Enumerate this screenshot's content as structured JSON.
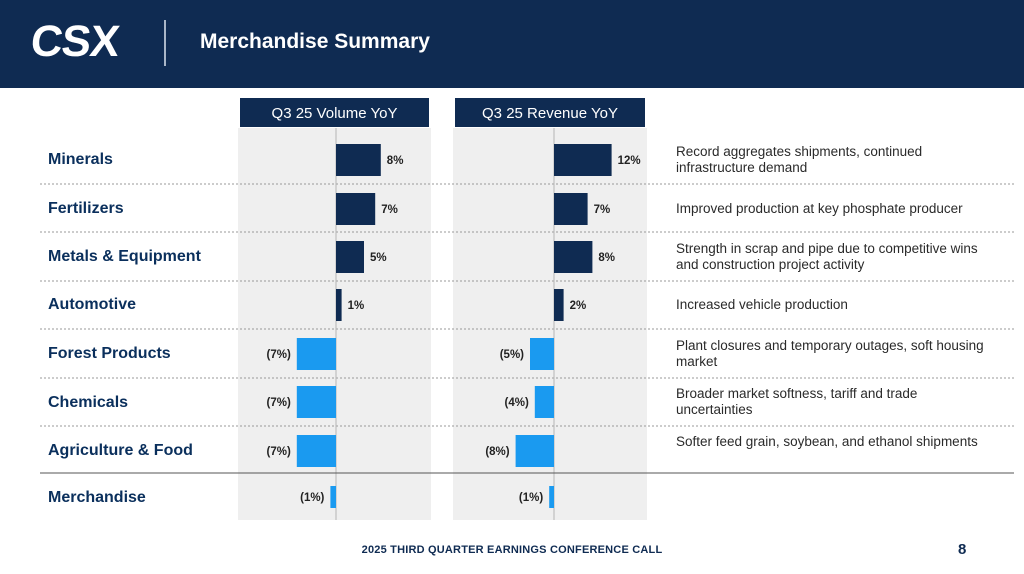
{
  "header": {
    "logo_text": "CSX",
    "title": "Merchandise Summary"
  },
  "chart_data": [
    {
      "type": "bar",
      "orientation": "horizontal",
      "title": "Q3 25 Volume YoY",
      "categories": [
        "Minerals",
        "Fertilizers",
        "Metals & Equipment",
        "Automotive",
        "Forest Products",
        "Chemicals",
        "Agriculture & Food",
        "Merchandise"
      ],
      "values": [
        8,
        7,
        5,
        1,
        -7,
        -7,
        -7,
        -1
      ],
      "value_labels": [
        "8%",
        "7%",
        "5%",
        "1%",
        "(7%)",
        "(7%)",
        "(7%)",
        "(1%)"
      ],
      "unit": "%",
      "colors": {
        "positive": "#0f2b52",
        "negative": "#1a9af0"
      }
    },
    {
      "type": "bar",
      "orientation": "horizontal",
      "title": "Q3 25 Revenue YoY",
      "categories": [
        "Minerals",
        "Fertilizers",
        "Metals & Equipment",
        "Automotive",
        "Forest Products",
        "Chemicals",
        "Agriculture & Food",
        "Merchandise"
      ],
      "values": [
        12,
        7,
        8,
        2,
        -5,
        -4,
        -8,
        -1
      ],
      "value_labels": [
        "12%",
        "7%",
        "8%",
        "2%",
        "(5%)",
        "(4%)",
        "(8%)",
        "(1%)"
      ],
      "unit": "%",
      "colors": {
        "positive": "#0f2b52",
        "negative": "#1a9af0"
      }
    }
  ],
  "rows": [
    {
      "label": "Minerals",
      "comment": "Record aggregates shipments, continued infrastructure demand"
    },
    {
      "label": "Fertilizers",
      "comment": "Improved production at key phosphate producer"
    },
    {
      "label": "Metals & Equipment",
      "comment": "Strength in scrap and pipe due to competitive wins and construction project activity"
    },
    {
      "label": "Automotive",
      "comment": "Increased vehicle production"
    },
    {
      "label": "Forest Products",
      "comment": "Plant closures and temporary outages, soft housing market"
    },
    {
      "label": "Chemicals",
      "comment": "Broader market softness, tariff and trade uncertainties"
    },
    {
      "label": "Agriculture & Food",
      "comment": "Softer feed grain, soybean, and ethanol shipments"
    },
    {
      "label": "Merchandise",
      "comment": ""
    }
  ],
  "footer": {
    "text": "2025 THIRD QUARTER EARNINGS CONFERENCE CALL",
    "page_number": "8"
  }
}
